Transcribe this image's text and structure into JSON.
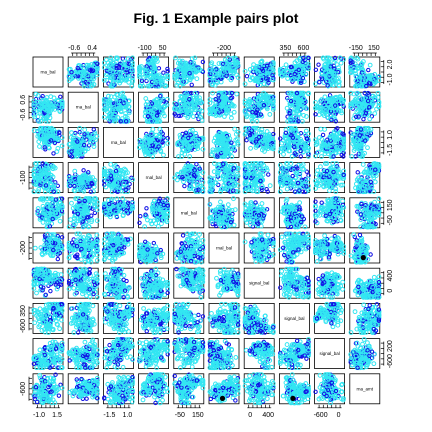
{
  "title": "Fig. 1 Example pairs plot",
  "colors": {
    "primary": "#33e6f2",
    "secondary": "#1010e6",
    "marker": "#000000",
    "frame": "#000000",
    "accent": "#c0392b"
  },
  "chart_data": {
    "type": "scatter",
    "title": "Fig. 1 Example pairs plot",
    "grid": false,
    "matrix_size": 10,
    "variables": [
      {
        "label": "rna_bal",
        "range": [
          -1.5,
          2.5
        ]
      },
      {
        "label": "rna_bal",
        "range": [
          -0.8,
          0.8
        ]
      },
      {
        "label": "rna_bal",
        "range": [
          -2,
          1.2
        ]
      },
      {
        "label": "rnal_bal",
        "range": [
          -140,
          90
        ]
      },
      {
        "label": "rnal_bal",
        "range": [
          -2.2,
          1.3
        ]
      },
      {
        "label": "rnal_bal",
        "range": [
          -90,
          220
        ]
      },
      {
        "label": "signal_bal",
        "range": [
          -320,
          30
        ]
      },
      {
        "label": "signal_bal",
        "range": [
          -250,
          600
        ]
      },
      {
        "label": "signal_bal",
        "range": [
          -900,
          250
        ]
      },
      {
        "label": "rna_amt",
        "range": [
          -180,
          180
        ]
      }
    ],
    "top_axis": [
      {
        "col": 1,
        "ticks": [
          "-0.6",
          "0.4"
        ]
      },
      {
        "col": 3,
        "ticks": [
          "-100",
          "50"
        ]
      },
      {
        "col": 5,
        "ticks": [
          "-200"
        ]
      },
      {
        "col": 7,
        "ticks": [
          "350",
          "600"
        ]
      },
      {
        "col": 9,
        "ticks": [
          "-150",
          "150"
        ]
      }
    ],
    "bottom_axis": [
      {
        "col": 0,
        "ticks": [
          "-1.0",
          "1.5"
        ]
      },
      {
        "col": 2,
        "ticks": [
          "-1.5",
          "1.0"
        ]
      },
      {
        "col": 4,
        "ticks": [
          "-50",
          "150"
        ]
      },
      {
        "col": 6,
        "ticks": [
          "0",
          "400"
        ]
      },
      {
        "col": 8,
        "ticks": [
          "-600",
          "0"
        ]
      }
    ],
    "left_axis": [
      {
        "row": 1,
        "ticks": [
          "-0.6",
          "0.6"
        ]
      },
      {
        "row": 3,
        "ticks": [
          "-100"
        ]
      },
      {
        "row": 5,
        "ticks": [
          "-200"
        ]
      },
      {
        "row": 7,
        "ticks": [
          "-600",
          "350"
        ]
      },
      {
        "row": 9,
        "ticks": [
          "-600"
        ]
      }
    ],
    "right_axis": [
      {
        "row": 0,
        "ticks": [
          "-1.0",
          "2.0"
        ]
      },
      {
        "row": 2,
        "ticks": [
          "-1.5",
          "1.0"
        ]
      },
      {
        "row": 4,
        "ticks": [
          "-50",
          "150"
        ]
      },
      {
        "row": 6,
        "ticks": [
          "0",
          "400"
        ]
      },
      {
        "row": 8,
        "ticks": [
          "-600",
          "200"
        ]
      }
    ],
    "points_per_panel": 140,
    "notes_markers": [
      {
        "row": 9,
        "col": 5
      },
      {
        "row": 9,
        "col": 7
      },
      {
        "row": 5,
        "col": 9
      }
    ]
  }
}
